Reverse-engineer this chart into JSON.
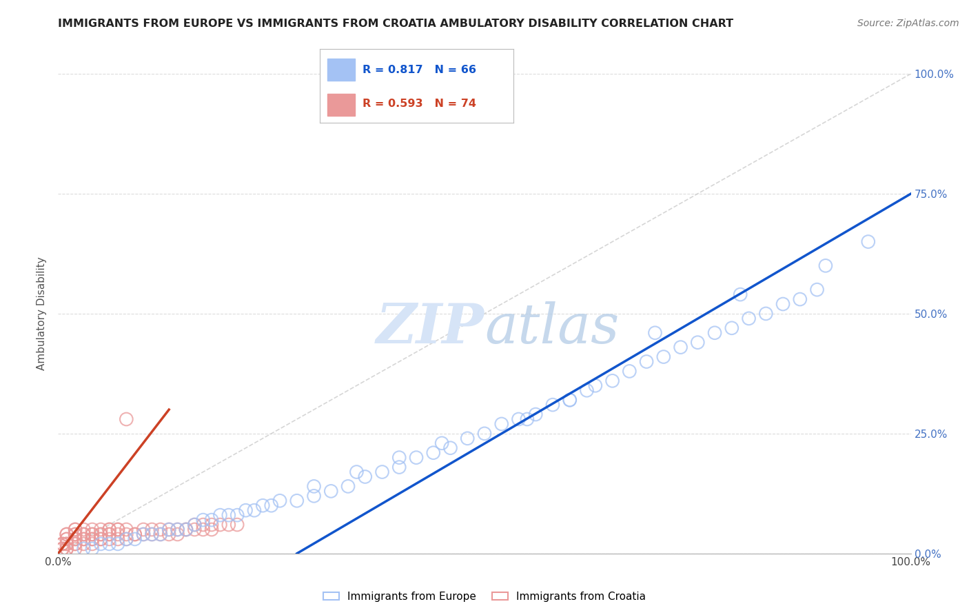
{
  "title": "IMMIGRANTS FROM EUROPE VS IMMIGRANTS FROM CROATIA AMBULATORY DISABILITY CORRELATION CHART",
  "source": "Source: ZipAtlas.com",
  "ylabel": "Ambulatory Disability",
  "xlim": [
    0,
    100
  ],
  "ylim": [
    0,
    100
  ],
  "xtick_labels": [
    "0.0%",
    "100.0%"
  ],
  "ytick_labels": [
    "100.0%",
    "75.0%",
    "50.0%",
    "25.0%",
    "0.0%"
  ],
  "ytick_vals": [
    100,
    75,
    50,
    25,
    0
  ],
  "legend_europe": "Immigrants from Europe",
  "legend_croatia": "Immigrants from Croatia",
  "R_europe": "0.817",
  "N_europe": "66",
  "R_croatia": "0.593",
  "N_croatia": "74",
  "blue_scatter_color": "#a4c2f4",
  "blue_line_color": "#1155cc",
  "pink_scatter_color": "#ea9999",
  "pink_line_color": "#cc4125",
  "diag_color": "#cccccc",
  "background_color": "#ffffff",
  "grid_color": "#cccccc",
  "watermark_color": "#d6e4f7",
  "right_tick_color": "#4472c4",
  "europe_x": [
    3,
    4,
    5,
    6,
    7,
    8,
    9,
    10,
    11,
    12,
    13,
    14,
    15,
    16,
    17,
    18,
    19,
    20,
    21,
    22,
    23,
    24,
    25,
    26,
    28,
    30,
    32,
    34,
    36,
    38,
    40,
    42,
    44,
    46,
    48,
    50,
    52,
    54,
    56,
    58,
    60,
    62,
    63,
    65,
    67,
    69,
    71,
    73,
    75,
    77,
    79,
    81,
    83,
    85,
    87,
    89,
    30,
    35,
    40,
    45,
    55,
    60,
    70,
    80,
    90,
    95
  ],
  "europe_y": [
    1,
    1,
    2,
    2,
    2,
    3,
    3,
    4,
    4,
    4,
    5,
    5,
    5,
    6,
    7,
    7,
    8,
    8,
    8,
    9,
    9,
    10,
    10,
    11,
    11,
    12,
    13,
    14,
    16,
    17,
    18,
    20,
    21,
    22,
    24,
    25,
    27,
    28,
    29,
    31,
    32,
    34,
    35,
    36,
    38,
    40,
    41,
    43,
    44,
    46,
    47,
    49,
    50,
    52,
    53,
    55,
    14,
    17,
    20,
    23,
    28,
    32,
    46,
    54,
    60,
    65
  ],
  "croatia_x": [
    0.5,
    0.5,
    0.5,
    0.5,
    1,
    1,
    1,
    1,
    1,
    1,
    1,
    1,
    2,
    2,
    2,
    2,
    2,
    2,
    2,
    2,
    2,
    3,
    3,
    3,
    3,
    3,
    3,
    4,
    4,
    4,
    4,
    4,
    4,
    5,
    5,
    5,
    5,
    5,
    6,
    6,
    6,
    6,
    6,
    7,
    7,
    7,
    7,
    8,
    8,
    8,
    9,
    9,
    10,
    10,
    11,
    11,
    12,
    12,
    13,
    13,
    14,
    14,
    15,
    15,
    16,
    16,
    17,
    17,
    18,
    18,
    19,
    20,
    21,
    8
  ],
  "croatia_y": [
    1,
    1,
    2,
    2,
    1,
    1,
    2,
    2,
    3,
    3,
    4,
    4,
    1,
    2,
    2,
    3,
    3,
    4,
    4,
    5,
    5,
    2,
    3,
    3,
    4,
    4,
    5,
    2,
    3,
    3,
    4,
    4,
    5,
    3,
    3,
    4,
    4,
    5,
    3,
    4,
    4,
    5,
    5,
    3,
    4,
    5,
    5,
    3,
    4,
    5,
    4,
    4,
    4,
    5,
    4,
    5,
    4,
    5,
    4,
    5,
    4,
    5,
    5,
    5,
    5,
    6,
    5,
    6,
    5,
    6,
    6,
    6,
    6,
    28
  ],
  "blue_line_x": [
    28,
    100
  ],
  "blue_line_y": [
    0,
    75
  ],
  "pink_line_x": [
    0,
    13
  ],
  "pink_line_y": [
    0,
    30
  ]
}
